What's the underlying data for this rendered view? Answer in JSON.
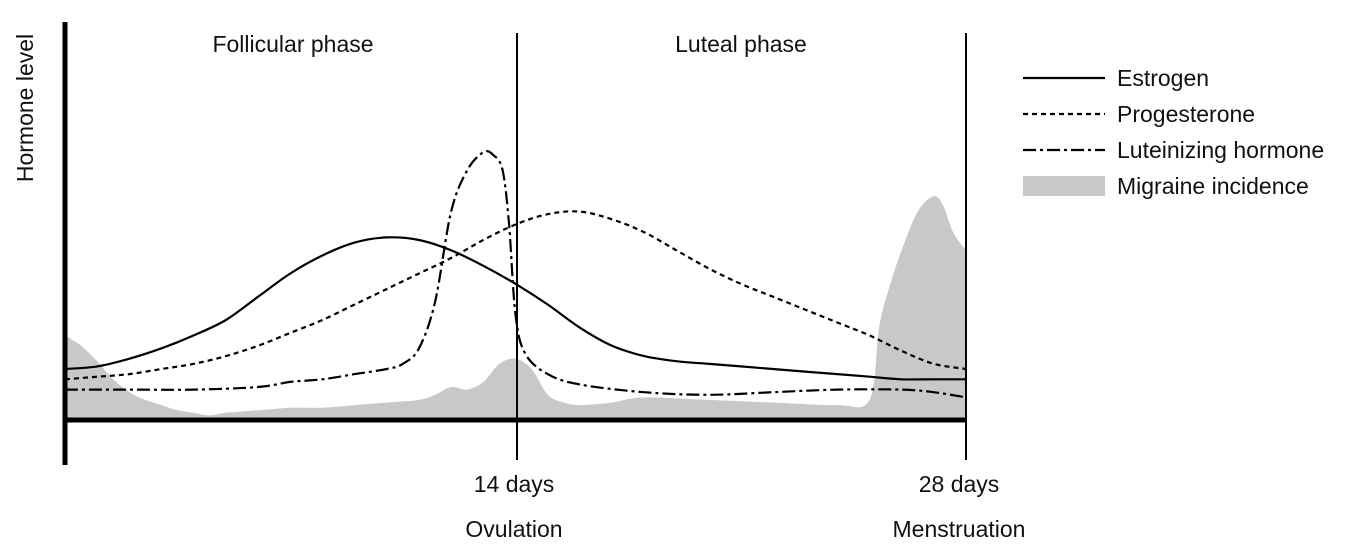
{
  "chart_data": {
    "type": "line",
    "ylabel": "Hormone level",
    "xlim": [
      0,
      28
    ],
    "ylim": [
      0,
      100
    ],
    "phases": [
      {
        "label": "Follicular phase",
        "x": 7
      },
      {
        "label": "Luteal phase",
        "x": 21
      }
    ],
    "markers": [
      {
        "x": 14,
        "tick_label": "14 days",
        "event_label": "Ovulation"
      },
      {
        "x": 28,
        "tick_label": "28 days",
        "event_label": "Menstruation"
      }
    ],
    "legend_position": "right",
    "series": [
      {
        "name": "Estrogen",
        "style": "solid",
        "color": "#000000",
        "x": [
          0,
          1,
          2,
          3,
          4,
          5,
          6,
          7,
          8,
          9,
          10,
          11,
          12,
          13,
          14,
          15,
          16,
          17,
          18,
          19,
          20,
          21,
          22,
          23,
          24,
          25,
          26,
          27,
          28
        ],
        "y": [
          19,
          20,
          23,
          27,
          32,
          38,
          47,
          56,
          63,
          68,
          70,
          69,
          65,
          59,
          52,
          44,
          35,
          28,
          24,
          22,
          21,
          20,
          19,
          18,
          17,
          16,
          15,
          15,
          15
        ]
      },
      {
        "name": "Progesterone",
        "style": "dashed",
        "color": "#000000",
        "x": [
          0,
          1,
          2,
          3,
          4,
          5,
          6,
          7,
          8,
          9,
          10,
          11,
          12,
          13,
          14,
          15,
          16,
          17,
          18,
          19,
          20,
          21,
          22,
          23,
          24,
          25,
          26,
          27,
          28
        ],
        "y": [
          15,
          16,
          17,
          19,
          21,
          24,
          28,
          33,
          38,
          44,
          50,
          56,
          62,
          69,
          75,
          79,
          80,
          77,
          72,
          65,
          58,
          52,
          47,
          42,
          37,
          32,
          26,
          21,
          19
        ]
      },
      {
        "name": "Luteinizing hormone",
        "style": "dashdot",
        "color": "#000000",
        "x": [
          0,
          2,
          4,
          6,
          7,
          8,
          9,
          10,
          10.5,
          11,
          11.5,
          12,
          12.5,
          13,
          13.3,
          13.6,
          13.8,
          14,
          14.3,
          15,
          16,
          18,
          20,
          22,
          24,
          26,
          27,
          28
        ],
        "y": [
          11,
          11,
          11,
          12,
          14,
          15,
          17,
          19,
          21,
          27,
          45,
          80,
          96,
          103,
          102,
          96,
          75,
          40,
          25,
          17,
          13,
          10,
          9,
          10,
          11,
          11,
          10,
          8
        ]
      },
      {
        "name": "Migraine incidence",
        "style": "area",
        "color": "#c8c8c8",
        "x": [
          0,
          0.5,
          1,
          1.5,
          2,
          2.5,
          3,
          3.5,
          4,
          4.5,
          5,
          6,
          7,
          8,
          9,
          10,
          11,
          11.5,
          12,
          12.5,
          13,
          13.5,
          14,
          14.5,
          15,
          15.5,
          16,
          17,
          18,
          20,
          22,
          24,
          25,
          25.3,
          25.6,
          26,
          26.5,
          27,
          27.3,
          27.6,
          28
        ],
        "y": [
          32,
          28,
          22,
          15,
          10,
          7,
          5,
          3,
          2,
          1,
          2,
          3,
          4,
          4,
          5,
          6,
          7,
          9,
          12,
          11,
          14,
          21,
          23,
          19,
          9,
          6,
          5,
          6,
          8,
          7,
          6,
          5,
          7,
          35,
          50,
          65,
          80,
          86,
          82,
          72,
          65
        ]
      }
    ]
  }
}
